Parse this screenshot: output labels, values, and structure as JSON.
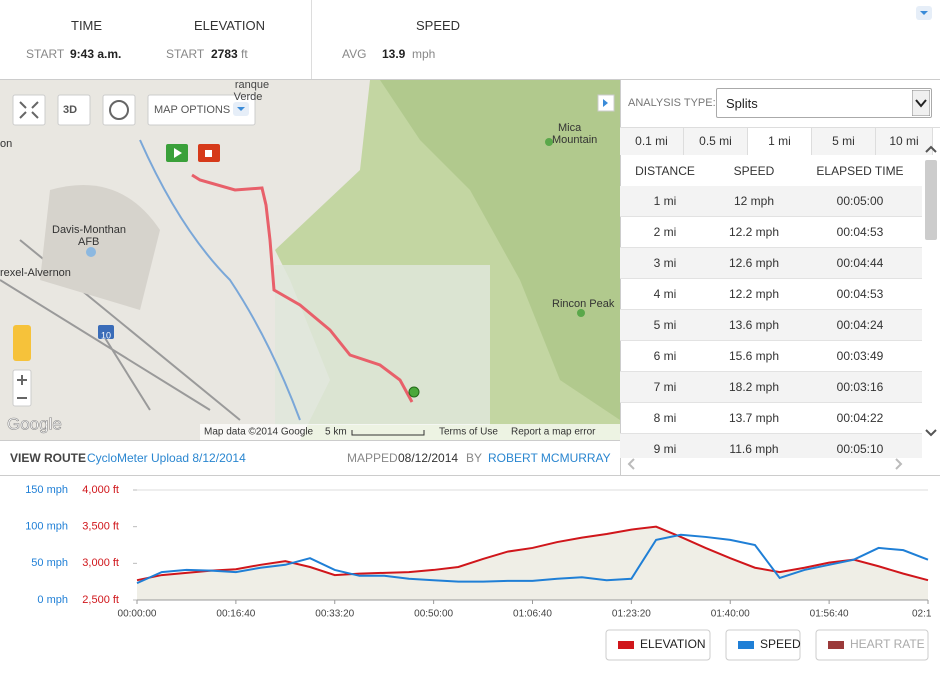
{
  "summary": {
    "time": {
      "heading": "TIME",
      "label": "START",
      "value": "9:43 a.m."
    },
    "elevation": {
      "heading": "ELEVATION",
      "label": "START",
      "value": "2783",
      "unit": "ft"
    },
    "speed": {
      "heading": "SPEED",
      "label": "AVG",
      "value": "13.9",
      "unit": "mph"
    }
  },
  "map": {
    "options": "MAP OPTIONS",
    "view_3d": "3D",
    "places": [
      "ranque",
      "Verde",
      "Mica",
      "Mountain",
      "Davis-Monthan",
      "AFB",
      "rexel-Alvernon",
      "Rincon Peak",
      "on",
      "10"
    ],
    "attribution": [
      "Map data ©2014 Google",
      "5 km",
      "Terms of Use",
      "Report a map error"
    ],
    "logo": "Google"
  },
  "footer": {
    "view_route": "VIEW ROUTE",
    "route_name": "CycloMeter Upload 8/12/2014",
    "mapped": "MAPPED",
    "date": "08/12/2014",
    "by": "BY",
    "author": "ROBERT MCMURRAY"
  },
  "analysis": {
    "label": "ANALYSIS TYPE:",
    "selected": "Splits",
    "tabs": [
      "0.1 mi",
      "0.5 mi",
      "1 mi",
      "5 mi",
      "10 mi"
    ],
    "active_tab": 2,
    "columns": [
      "DISTANCE",
      "SPEED",
      "ELAPSED TIME"
    ],
    "rows": [
      [
        "1 mi",
        "12 mph",
        "00:05:00"
      ],
      [
        "2 mi",
        "12.2 mph",
        "00:04:53"
      ],
      [
        "3 mi",
        "12.6 mph",
        "00:04:44"
      ],
      [
        "4 mi",
        "12.2 mph",
        "00:04:53"
      ],
      [
        "5 mi",
        "13.6 mph",
        "00:04:24"
      ],
      [
        "6 mi",
        "15.6 mph",
        "00:03:49"
      ],
      [
        "7 mi",
        "18.2 mph",
        "00:03:16"
      ],
      [
        "8 mi",
        "13.7 mph",
        "00:04:22"
      ],
      [
        "9 mi",
        "11.6 mph",
        "00:05:10"
      ]
    ]
  },
  "chart_data": {
    "type": "line",
    "x": [
      0,
      250,
      500,
      750,
      1000,
      1250,
      1500,
      1750,
      2000,
      2250,
      2500,
      2750,
      3000,
      3250,
      3500,
      3750,
      4000,
      4250,
      4500,
      4750,
      5000,
      5250,
      5500,
      5750,
      6000,
      6250,
      6500,
      6750,
      7000,
      7250,
      7500,
      7750,
      8000
    ],
    "series": [
      {
        "name": "ELEVATION",
        "color": "#d0161b",
        "axis": "y2",
        "values": [
          2770,
          2840,
          2870,
          2900,
          2920,
          2980,
          3030,
          2950,
          2840,
          2860,
          2870,
          2880,
          2910,
          2950,
          3060,
          3160,
          3210,
          3290,
          3350,
          3400,
          3460,
          3500,
          3360,
          3210,
          3070,
          2940,
          2880,
          2940,
          3010,
          3050,
          2960,
          2860,
          2770
        ]
      },
      {
        "name": "SPEED",
        "color": "#1f7fd6",
        "values": [
          23,
          38,
          41,
          40,
          38,
          44,
          48,
          57,
          41,
          33,
          33,
          29,
          27,
          25,
          25,
          26,
          26,
          29,
          31,
          27,
          29,
          82,
          89,
          86,
          82,
          75,
          30,
          41,
          48,
          55,
          71,
          68,
          55
        ]
      }
    ],
    "inactive_legend": {
      "name": "HEART RATE",
      "color": "#9b3a3a"
    },
    "xlim": [
      0,
      8000
    ],
    "xticks": [
      {
        "value": 0,
        "label": "00:00:00"
      },
      {
        "value": 1000,
        "label": "00:16:40"
      },
      {
        "value": 2000,
        "label": "00:33:20"
      },
      {
        "value": 3000,
        "label": "00:50:00"
      },
      {
        "value": 4000,
        "label": "01:06:40"
      },
      {
        "value": 5000,
        "label": "01:23:20"
      },
      {
        "value": 6000,
        "label": "01:40:00"
      },
      {
        "value": 7000,
        "label": "01:56:40"
      },
      {
        "value": 8000,
        "label": "02:1"
      }
    ],
    "ylim": [
      0,
      150
    ],
    "yticks": [
      {
        "value": 0,
        "label": "0 mph"
      },
      {
        "value": 50,
        "label": "50 mph"
      },
      {
        "value": 100,
        "label": "100 mph"
      },
      {
        "value": 150,
        "label": "150 mph"
      }
    ],
    "y2lim": [
      2500,
      4000
    ],
    "y2ticks": [
      {
        "value": 2500,
        "label": "2,500 ft"
      },
      {
        "value": 3000,
        "label": "3,000 ft"
      },
      {
        "value": 3500,
        "label": "3,500 ft"
      },
      {
        "value": 4000,
        "label": "4,000 ft"
      }
    ],
    "grid": false
  }
}
